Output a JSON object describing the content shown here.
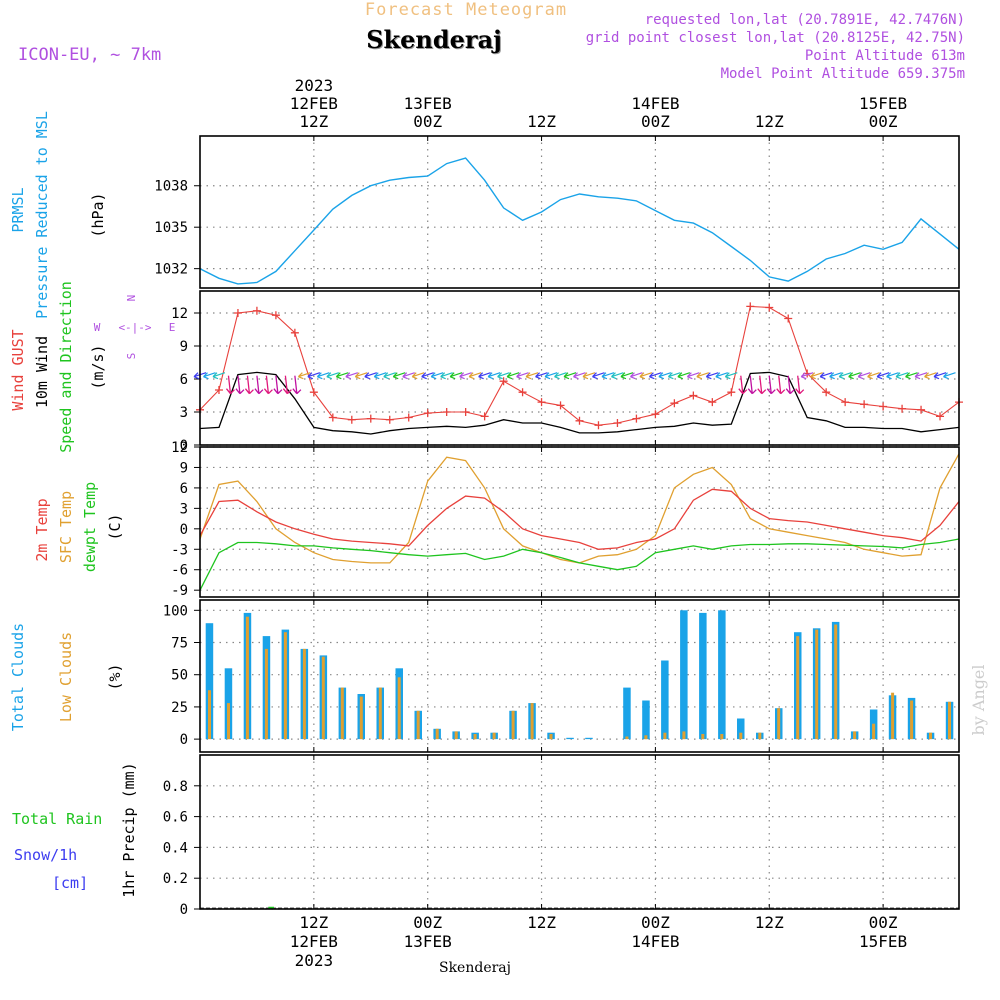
{
  "header": {
    "super_title": "Forecast Meteogram",
    "station": "Skenderaj",
    "model": "ICON-EU, ~ 7km",
    "requested": "requested lon,lat (20.7891E, 42.7476N)",
    "grid_point": "grid point closest lon,lat (20.8125E, 42.75N)",
    "point_altitude": "Point Altitude 613m",
    "model_altitude": "Model Point Altitude 659.375m"
  },
  "top_axis": {
    "year": "2023",
    "ticks": [
      {
        "h": 12,
        "line1": "12FEB",
        "line2": "12Z"
      },
      {
        "h": 24,
        "line1": "13FEB",
        "line2": "00Z"
      },
      {
        "h": 36,
        "line1": "",
        "line2": "12Z"
      },
      {
        "h": 48,
        "line1": "14FEB",
        "line2": "00Z"
      },
      {
        "h": 60,
        "line1": "",
        "line2": "12Z"
      },
      {
        "h": 72,
        "line1": "15FEB",
        "line2": "00Z"
      }
    ]
  },
  "bottom_axis": {
    "ticks": [
      {
        "h": 12,
        "line1": "12Z",
        "line2": "12FEB"
      },
      {
        "h": 24,
        "line1": "00Z",
        "line2": "13FEB"
      },
      {
        "h": 36,
        "line1": "12Z",
        "line2": ""
      },
      {
        "h": 48,
        "line1": "00Z",
        "line2": "14FEB"
      },
      {
        "h": 60,
        "line1": "12Z",
        "line2": ""
      },
      {
        "h": 72,
        "line1": "00Z",
        "line2": "15FEB"
      }
    ],
    "year": "2023",
    "footer": "Skenderaj"
  },
  "labels": {
    "prmsl_1": "PRMSL",
    "prmsl_2": "Pressure Reduced to MSL",
    "prmsl_unit": "(hPa)",
    "gust": "Wind GUST",
    "wind10": "10m Wind",
    "wind_dir": "Speed and Direction",
    "wind_unit": "(m/s)",
    "compass_n": "N",
    "compass_s": "S",
    "compass_w": "W",
    "compass_e": "E",
    "temp2m": "2m Temp",
    "sfc_temp": "SFC Temp",
    "dewpt": "dewpt Temp",
    "temp_unit": "(C)",
    "total_clouds": "Total Clouds",
    "low_clouds": "Low Clouds",
    "cloud_unit": "(%)",
    "total_rain": "Total  Rain",
    "snow": "Snow/1h",
    "snow_unit": "[cm]",
    "precip": "1hr Precip (mm)",
    "watermark": "by Angel"
  },
  "colors": {
    "pressure": "#1aa3e8",
    "gust": "#e8413c",
    "wind": "#000000",
    "temp2m": "#e8413c",
    "sfc": "#e0a030",
    "dewpt": "#1fc41f",
    "total_clouds": "#1aa3e8",
    "low_clouds": "#e0a030",
    "rain": "#1fc41f",
    "snow": "#3c3cf0",
    "purple": "#b050e0",
    "title_orange": "#f0c080"
  },
  "chart_data": [
    {
      "type": "line",
      "title": "PRMSL Pressure Reduced to MSL",
      "ylabel": "(hPa)",
      "ylim": [
        1030.6,
        1041.6
      ],
      "yticks": [
        1032,
        1035,
        1038
      ],
      "x": [
        0,
        2,
        4,
        6,
        8,
        10,
        12,
        14,
        16,
        18,
        20,
        22,
        24,
        26,
        28,
        30,
        32,
        34,
        36,
        38,
        40,
        42,
        44,
        46,
        48,
        50,
        52,
        54,
        56,
        58,
        60,
        62,
        64,
        66,
        68,
        70,
        72,
        74,
        76,
        78,
        80
      ],
      "series": [
        {
          "name": "PRMSL",
          "values": [
            1032.0,
            1031.3,
            1030.9,
            1031.0,
            1031.8,
            1033.3,
            1034.8,
            1036.3,
            1037.3,
            1038.0,
            1038.4,
            1038.6,
            1038.7,
            1039.6,
            1040.0,
            1038.4,
            1036.4,
            1035.5,
            1036.1,
            1037.0,
            1037.4,
            1037.2,
            1037.1,
            1036.9,
            1036.2,
            1035.5,
            1035.3,
            1034.6,
            1033.6,
            1032.6,
            1031.4,
            1031.1,
            1031.8,
            1032.7,
            1033.1,
            1033.7,
            1033.4,
            1033.9,
            1035.6,
            1034.5,
            1033.4
          ]
        }
      ]
    },
    {
      "type": "line",
      "title": "Wind GUST / 10m Wind Speed and Direction",
      "ylabel": "(m/s)",
      "ylim": [
        0,
        14
      ],
      "yticks": [
        0,
        3,
        6,
        9,
        12
      ],
      "x": [
        0,
        2,
        4,
        6,
        8,
        10,
        12,
        14,
        16,
        18,
        20,
        22,
        24,
        26,
        28,
        30,
        32,
        34,
        36,
        38,
        40,
        42,
        44,
        46,
        48,
        50,
        52,
        54,
        56,
        58,
        60,
        62,
        64,
        66,
        68,
        70,
        72,
        74,
        76,
        78,
        80
      ],
      "series": [
        {
          "name": "Wind GUST",
          "values": [
            3.2,
            5.0,
            12.0,
            12.2,
            11.8,
            10.2,
            4.8,
            2.5,
            2.3,
            2.4,
            2.3,
            2.5,
            2.9,
            3.0,
            3.0,
            2.6,
            5.8,
            4.8,
            3.9,
            3.6,
            2.2,
            1.8,
            2.0,
            2.4,
            2.8,
            3.8,
            4.5,
            3.9,
            4.8,
            12.6,
            12.5,
            11.5,
            6.5,
            4.8,
            3.9,
            3.7,
            3.5,
            3.3,
            3.2,
            2.6,
            3.9
          ]
        },
        {
          "name": "10m Wind",
          "values": [
            1.5,
            1.6,
            6.4,
            6.6,
            6.4,
            4.2,
            1.6,
            1.3,
            1.2,
            1.0,
            1.3,
            1.5,
            1.6,
            1.7,
            1.6,
            1.8,
            2.3,
            2.0,
            2.0,
            1.6,
            1.1,
            1.1,
            1.2,
            1.4,
            1.6,
            1.7,
            2.0,
            1.8,
            1.9,
            6.5,
            6.6,
            6.2,
            2.5,
            2.2,
            1.6,
            1.6,
            1.5,
            1.5,
            1.2,
            1.4,
            1.6
          ]
        }
      ],
      "wind_arrows": "0-4 W; 4-10 N (strong); 10-80 mostly ENE; 56-64 N (strong); rest ENE"
    },
    {
      "type": "line",
      "title": "2m Temp / SFC Temp / dewpt Temp",
      "ylabel": "(C)",
      "ylim": [
        -10,
        12
      ],
      "yticks": [
        -9,
        -6,
        -3,
        0,
        3,
        6,
        9,
        12
      ],
      "x": [
        0,
        2,
        4,
        6,
        8,
        10,
        12,
        14,
        16,
        18,
        20,
        22,
        24,
        26,
        28,
        30,
        32,
        34,
        36,
        38,
        40,
        42,
        44,
        46,
        48,
        50,
        52,
        54,
        56,
        58,
        60,
        62,
        64,
        66,
        68,
        70,
        72,
        74,
        76,
        78,
        80
      ],
      "series": [
        {
          "name": "2m Temp",
          "values": [
            -1.0,
            4.0,
            4.2,
            2.5,
            1.0,
            0.0,
            -0.8,
            -1.5,
            -1.8,
            -2.0,
            -2.2,
            -2.5,
            0.5,
            3.0,
            4.8,
            4.5,
            2.5,
            0.0,
            -1.0,
            -1.5,
            -2.0,
            -3.0,
            -2.8,
            -2.0,
            -1.5,
            0.0,
            4.2,
            5.8,
            5.5,
            3.0,
            1.5,
            1.2,
            1.0,
            0.5,
            0.0,
            -0.5,
            -1.0,
            -1.3,
            -1.8,
            0.5,
            4.0
          ]
        },
        {
          "name": "SFC Temp",
          "values": [
            -1.5,
            6.5,
            7.0,
            4.0,
            0.0,
            -2.0,
            -3.5,
            -4.5,
            -4.8,
            -5.0,
            -5.0,
            -2.0,
            7.0,
            10.5,
            10.0,
            6.0,
            0.0,
            -2.5,
            -3.5,
            -4.5,
            -5.0,
            -4.0,
            -3.8,
            -3.0,
            -1.0,
            6.0,
            8.0,
            9.0,
            6.5,
            1.5,
            0.0,
            -0.5,
            -1.0,
            -1.5,
            -2.0,
            -3.0,
            -3.5,
            -4.0,
            -3.8,
            6.0,
            11.0
          ]
        },
        {
          "name": "dewpt Temp",
          "values": [
            -9.0,
            -3.5,
            -2.0,
            -2.0,
            -2.2,
            -2.5,
            -2.5,
            -2.8,
            -3.0,
            -3.2,
            -3.5,
            -3.8,
            -4.0,
            -3.8,
            -3.6,
            -4.5,
            -4.0,
            -3.0,
            -3.5,
            -4.2,
            -5.0,
            -5.5,
            -6.0,
            -5.5,
            -3.5,
            -3.0,
            -2.5,
            -3.0,
            -2.5,
            -2.3,
            -2.3,
            -2.2,
            -2.2,
            -2.3,
            -2.4,
            -2.5,
            -2.6,
            -2.8,
            -2.3,
            -2.0,
            -1.5
          ]
        }
      ]
    },
    {
      "type": "bar",
      "title": "Total Clouds / Low Clouds",
      "ylabel": "(%)",
      "ylim": [
        -10,
        108
      ],
      "yticks": [
        0,
        25,
        50,
        75,
        100
      ],
      "x": [
        1,
        3,
        5,
        7,
        9,
        11,
        13,
        15,
        17,
        19,
        21,
        23,
        25,
        27,
        29,
        31,
        33,
        35,
        37,
        39,
        41,
        43,
        45,
        47,
        49,
        51,
        53,
        55,
        57,
        59,
        61,
        63,
        65,
        67,
        69,
        71,
        73,
        75,
        77,
        79
      ],
      "series": [
        {
          "name": "Total Clouds",
          "values": [
            90,
            55,
            98,
            80,
            85,
            70,
            65,
            40,
            35,
            40,
            55,
            22,
            8,
            6,
            5,
            5,
            22,
            28,
            5,
            1,
            1,
            0,
            40,
            30,
            61,
            100,
            98,
            100,
            16,
            5,
            24,
            83,
            86,
            91,
            6,
            23,
            34,
            32,
            5,
            29
          ]
        },
        {
          "name": "Low Clouds",
          "values": [
            38,
            28,
            95,
            70,
            83,
            70,
            64,
            40,
            33,
            40,
            48,
            22,
            8,
            6,
            4,
            5,
            22,
            28,
            4,
            0,
            0,
            0,
            2,
            3,
            5,
            6,
            4,
            4,
            5,
            5,
            24,
            80,
            85,
            89,
            6,
            12,
            36,
            30,
            5,
            29
          ]
        }
      ]
    },
    {
      "type": "bar",
      "title": "Total Rain / Snow 1hr Precip",
      "ylabel": "1hr Precip (mm)",
      "ylim": [
        0,
        1.0
      ],
      "yticks": [
        0,
        0.2,
        0.4,
        0.6,
        0.8
      ],
      "x": [
        0,
        80
      ],
      "series": [
        {
          "name": "Total Rain",
          "values": [
            0,
            0
          ]
        },
        {
          "name": "Snow/1h",
          "values": [
            0,
            0
          ]
        }
      ]
    }
  ]
}
